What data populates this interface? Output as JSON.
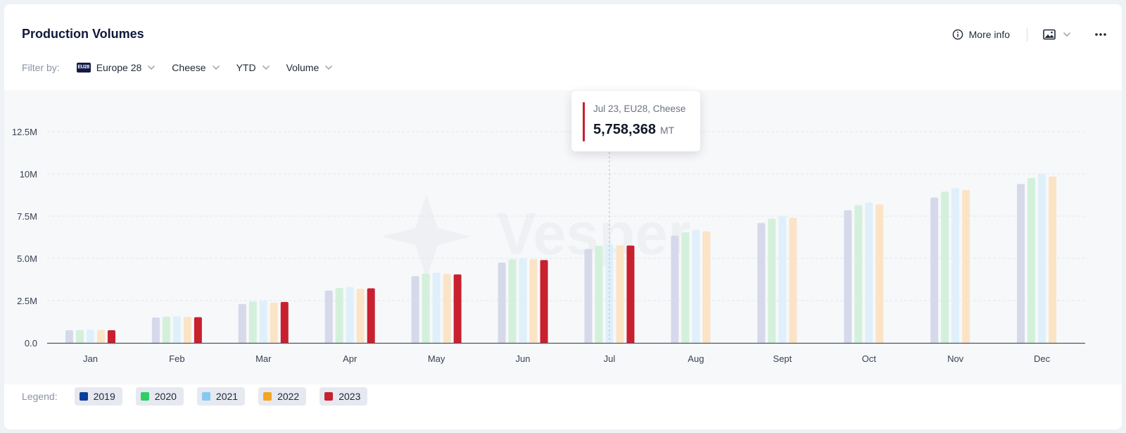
{
  "header": {
    "title": "Production Volumes",
    "more_info": "More info"
  },
  "filters": {
    "label": "Filter by:",
    "region_badge": "EU28",
    "region": "Europe 28",
    "product": "Cheese",
    "period": "YTD",
    "metric": "Volume"
  },
  "icons": {
    "info": "info-icon",
    "image": "image-icon",
    "chevron": "chevron-down-icon",
    "more": "ellipsis-icon"
  },
  "watermark": "Vesper",
  "tooltip": {
    "header": "Jul 23, EU28, Cheese",
    "value": "5,758,368",
    "unit": "MT",
    "category": "Jul"
  },
  "legend": {
    "label": "Legend:",
    "items": [
      {
        "label": "2019",
        "color": "#0b3d9c"
      },
      {
        "label": "2020",
        "color": "#2fcf66"
      },
      {
        "label": "2021",
        "color": "#86c9f0"
      },
      {
        "label": "2022",
        "color": "#f5a524"
      },
      {
        "label": "2023",
        "color": "#c8202f"
      }
    ]
  },
  "chart_data": {
    "type": "bar",
    "categories": [
      "Jan",
      "Feb",
      "Mar",
      "Apr",
      "May",
      "Jun",
      "Jul",
      "Aug",
      "Sept",
      "Oct",
      "Nov",
      "Dec"
    ],
    "yticks": [
      "0.0",
      "2.5M",
      "5.0M",
      "7.5M",
      "10M",
      "12.5M"
    ],
    "ylim": [
      0,
      12500000
    ],
    "grid": true,
    "legend_position": "bottom",
    "series": [
      {
        "name": "2019",
        "color": "#d5d9ea",
        "values": [
          750000,
          1500000,
          2300000,
          3100000,
          3950000,
          4750000,
          5550000,
          6350000,
          7100000,
          7850000,
          8600000,
          9400000
        ]
      },
      {
        "name": "2020",
        "color": "#d3f0db",
        "values": [
          760000,
          1550000,
          2450000,
          3250000,
          4100000,
          4950000,
          5750000,
          6550000,
          7350000,
          8150000,
          8950000,
          9750000
        ]
      },
      {
        "name": "2021",
        "color": "#dff0fa",
        "values": [
          780000,
          1580000,
          2500000,
          3300000,
          4150000,
          5000000,
          5850000,
          6700000,
          7500000,
          8300000,
          9150000,
          10000000
        ]
      },
      {
        "name": "2022",
        "color": "#fbe4c6",
        "values": [
          770000,
          1540000,
          2380000,
          3200000,
          4080000,
          4950000,
          5780000,
          6600000,
          7400000,
          8200000,
          9050000,
          9850000
        ]
      },
      {
        "name": "2023",
        "color": "#c8202f",
        "values": [
          750000,
          1520000,
          2420000,
          3230000,
          4050000,
          4900000,
          5758368,
          null,
          null,
          null,
          null,
          null
        ]
      }
    ]
  }
}
